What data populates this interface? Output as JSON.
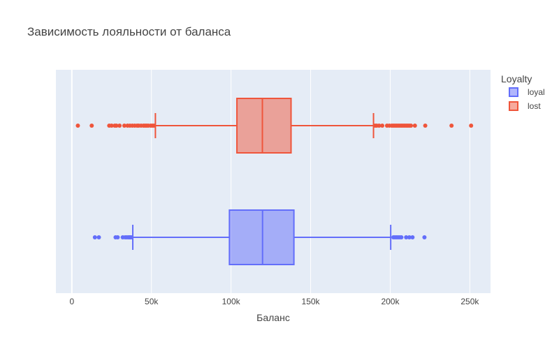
{
  "chart_data": {
    "type": "box",
    "orientation": "horizontal",
    "title": "Зависимость лояльности от баланса",
    "xlabel": "Баланс",
    "ylabel": "",
    "xlim": [
      -10000,
      263000
    ],
    "x_ticks": [
      0,
      50000,
      100000,
      150000,
      200000,
      250000
    ],
    "x_tick_labels": [
      "0",
      "50k",
      "100k",
      "150k",
      "200k",
      "250k"
    ],
    "grid": true,
    "legend": {
      "title": "Loyalty",
      "position": "top-right"
    },
    "series": [
      {
        "name": "loyal",
        "color": "#636efa",
        "q1": 99000,
        "median": 119800,
        "q3": 139500,
        "lower_fence": 38300,
        "upper_fence": 200300,
        "outliers": [
          14500,
          17000,
          27500,
          28800,
          32000,
          33500,
          34500,
          35500,
          36200,
          36800,
          37400,
          202000,
          203000,
          204000,
          205000,
          206000,
          207000,
          210000,
          212000,
          214000,
          221500
        ]
      },
      {
        "name": "lost",
        "color": "#ef553b",
        "q1": 103700,
        "median": 119700,
        "q3": 137700,
        "lower_fence": 52500,
        "upper_fence": 189500,
        "outliers": [
          3800,
          12500,
          23500,
          25000,
          27000,
          28000,
          30000,
          33000,
          35000,
          36500,
          38000,
          39500,
          41000,
          42000,
          43500,
          45000,
          46000,
          47000,
          48000,
          49500,
          50500,
          51500,
          190500,
          191500,
          193000,
          195000,
          198000,
          199500,
          201000,
          202000,
          203000,
          204000,
          205000,
          206000,
          207000,
          208000,
          209000,
          210000,
          211000,
          212000,
          213000,
          215500,
          222000,
          238500,
          250800
        ]
      }
    ]
  }
}
